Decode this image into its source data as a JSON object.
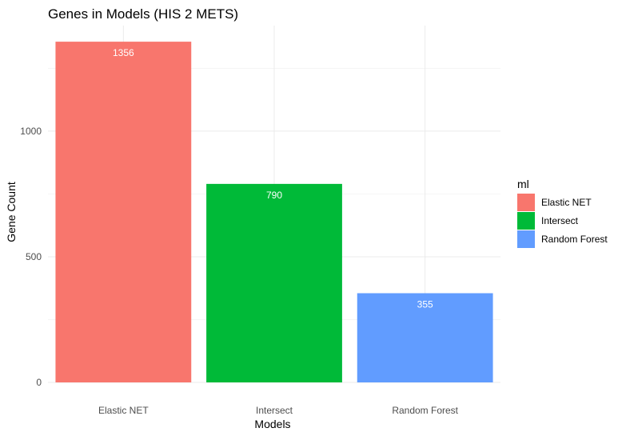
{
  "chart_data": {
    "type": "bar",
    "title": "Genes in Models (HIS 2 METS)",
    "xlabel": "Models",
    "ylabel": "Gene Count",
    "categories": [
      "Elastic NET",
      "Intersect",
      "Random Forest"
    ],
    "values": [
      1356,
      790,
      355
    ],
    "value_labels": [
      "1356",
      "790",
      "355"
    ],
    "colors": [
      "#F8766D",
      "#00BA38",
      "#619CFF"
    ],
    "ylim": [
      0,
      1420
    ],
    "yticks": [
      0,
      500,
      1000
    ],
    "ytick_labels": [
      "0",
      "500",
      "1000"
    ],
    "grid": true,
    "legend": {
      "title": "ml",
      "position": "right",
      "entries": [
        "Elastic NET",
        "Intersect",
        "Random Forest"
      ]
    }
  }
}
